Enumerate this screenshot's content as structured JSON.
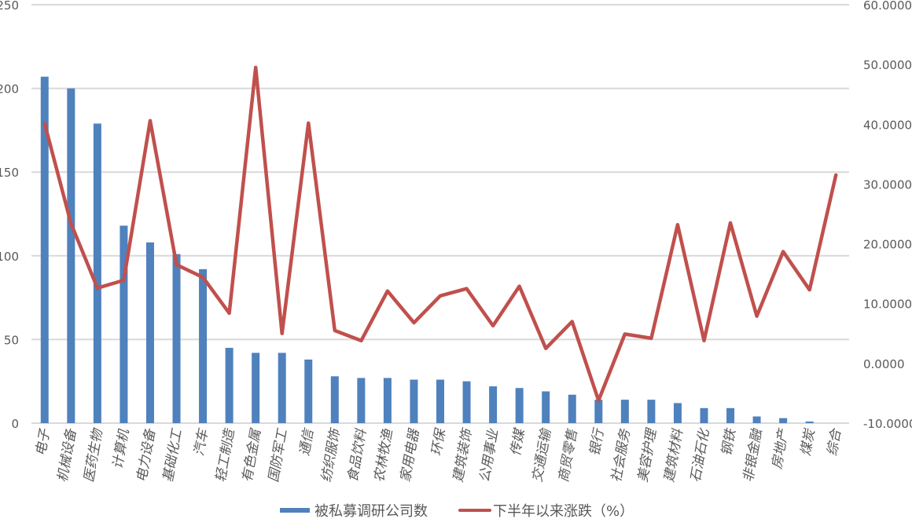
{
  "chart_data": {
    "type": "bar+line",
    "title": "",
    "categories": [
      "电子",
      "机械设备",
      "医药生物",
      "计算机",
      "电力设备",
      "基础化工",
      "汽车",
      "轻工制造",
      "有色金属",
      "国防军工",
      "通信",
      "纺织服饰",
      "食品饮料",
      "农林牧渔",
      "家用电器",
      "环保",
      "建筑装饰",
      "公用事业",
      "传媒",
      "交通运输",
      "商贸零售",
      "银行",
      "社会服务",
      "美容护理",
      "建筑材料",
      "石油石化",
      "钢铁",
      "非银金融",
      "房地产",
      "煤炭",
      "综合"
    ],
    "series": [
      {
        "name": "被私募调研公司数",
        "type": "bar",
        "axis": "left",
        "color": "#4f81bd",
        "values": [
          207,
          200,
          179,
          118,
          108,
          101,
          92,
          45,
          42,
          42,
          38,
          28,
          27,
          27,
          26,
          26,
          25,
          22,
          21,
          19,
          17,
          14,
          14,
          14,
          12,
          9,
          9,
          4,
          3,
          1,
          0
        ]
      },
      {
        "name": "下半年以来涨跌（%）",
        "type": "line",
        "axis": "right",
        "color": "#c0504d",
        "values": [
          40.1,
          23.4,
          12.6,
          13.9,
          40.6,
          16.5,
          14.4,
          8.4,
          49.5,
          5.0,
          40.2,
          5.5,
          3.8,
          12.1,
          6.8,
          11.3,
          12.5,
          6.3,
          12.9,
          2.5,
          7.0,
          -6.2,
          4.9,
          4.2,
          23.2,
          3.8,
          23.5,
          7.9,
          18.7,
          12.3,
          31.5
        ]
      }
    ],
    "left_axis": {
      "ylim": [
        0,
        250
      ],
      "ticks": [
        0,
        50,
        100,
        150,
        200,
        250
      ],
      "tick_labels": [
        "0",
        "50",
        "100",
        "150",
        "200",
        "250"
      ]
    },
    "right_axis": {
      "ylim": [
        -10,
        60
      ],
      "ticks": [
        -10,
        0,
        10,
        20,
        30,
        40,
        50,
        60
      ],
      "tick_labels": [
        "-10.0000",
        "0.0000",
        "10.0000",
        "20.0000",
        "30.0000",
        "40.0000",
        "50.0000",
        "60.0000"
      ]
    },
    "xlabel": "",
    "ylabel": "",
    "grid": true,
    "legend_position": "bottom"
  },
  "legend": {
    "bar_label": "被私募调研公司数",
    "line_label": "下半年以来涨跌（%）"
  }
}
